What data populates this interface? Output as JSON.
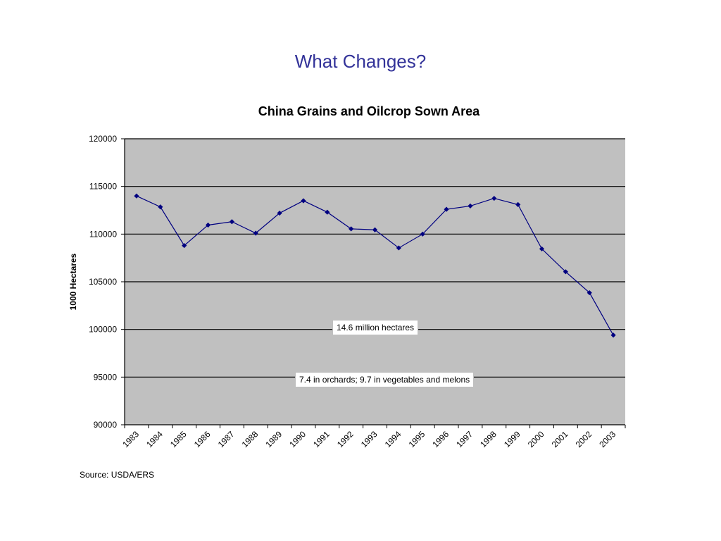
{
  "slide": {
    "title": "What Changes?",
    "source": "Source: USDA/ERS"
  },
  "chart_data": {
    "type": "line",
    "title": "China Grains and Oilcrop Sown Area",
    "xlabel": "",
    "ylabel": "1000 Hectares",
    "ylim": [
      90000,
      120000
    ],
    "yticks": [
      "90000",
      "95000",
      "100000",
      "105000",
      "110000",
      "115000",
      "120000"
    ],
    "categories": [
      "1983",
      "1984",
      "1985",
      "1986",
      "1987",
      "1988",
      "1989",
      "1990",
      "1991",
      "1992",
      "1993",
      "1994",
      "1995",
      "1996",
      "1997",
      "1998",
      "1999",
      "2000",
      "2001",
      "2002",
      "2003"
    ],
    "series": [
      {
        "values": [
          114000,
          112850,
          108800,
          110950,
          111300,
          110100,
          112200,
          113500,
          112300,
          110550,
          110450,
          108550,
          110000,
          112600,
          112950,
          113750,
          113100,
          108450,
          106050,
          103850,
          99400
        ]
      }
    ],
    "annotations": [
      "14.6 million hectares",
      "7.4 in orchards; 9.7 in vegetables and melons"
    ],
    "grid": true,
    "legend": "none",
    "colors": {
      "line": "#000080",
      "plot_bg": "#c0c0c0",
      "grid": "#000000"
    }
  }
}
